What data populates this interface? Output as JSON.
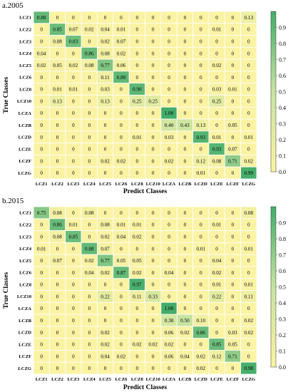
{
  "chart_data": [
    {
      "type": "heatmap",
      "title": "a.2005",
      "xlabel": "Predict Classes",
      "ylabel": "True Classes",
      "x_categories": [
        "LCZ1",
        "LCZ2",
        "LCZ3",
        "LCZ4",
        "LCZ5",
        "LCZ6",
        "LCZ8",
        "LCZ10",
        "LCZA",
        "LCZB",
        "LCZD",
        "LCZE",
        "LCZF",
        "LCZG"
      ],
      "y_categories": [
        "LCZ1",
        "LCZ2",
        "LCZ3",
        "LCZ4",
        "LCZ5",
        "LCZ6",
        "LCZ8",
        "LCZ10",
        "LCZA",
        "LCZB",
        "LCZD",
        "LCZE",
        "LCZF",
        "LCZG"
      ],
      "values": [
        [
          "0.88",
          "0",
          "0",
          "0",
          "0",
          "0",
          "0",
          "0",
          "0",
          "0",
          "0",
          "0",
          "0",
          "0.13"
        ],
        [
          "0",
          "0.85",
          "0.07",
          "0.02",
          "0.04",
          "0.01",
          "0",
          "0",
          "0",
          "0",
          "0",
          "0.01",
          "0",
          "0"
        ],
        [
          "0",
          "0.08",
          "0.83",
          "0",
          "0.02",
          "0.07",
          "0",
          "0",
          "0",
          "0",
          "0",
          "0",
          "0",
          "0"
        ],
        [
          "0.04",
          "0",
          "0",
          "0.86",
          "0.08",
          "0.02",
          "0",
          "0",
          "0",
          "0",
          "0",
          "0",
          "0",
          "0"
        ],
        [
          "0.02",
          "0.05",
          "0.02",
          "0.08",
          "0.77",
          "0.06",
          "0",
          "0",
          "0",
          "0",
          "0",
          "0.02",
          "0",
          "0"
        ],
        [
          "0",
          "0",
          "0",
          "0",
          "0.11",
          "0.89",
          "0",
          "0",
          "0",
          "0",
          "0",
          "0",
          "0",
          "0"
        ],
        [
          "0",
          "0.01",
          "0.01",
          "0",
          "0.03",
          "0",
          "0.90",
          "0",
          "0",
          "0",
          "0",
          "0.03",
          "0.01",
          "0"
        ],
        [
          "0",
          "0.13",
          "0",
          "0",
          "0.13",
          "0",
          "0.25",
          "0.25",
          "0",
          "0",
          "0",
          "0.25",
          "0",
          "0"
        ],
        [
          "0",
          "0",
          "0",
          "0",
          "0",
          "0",
          "0",
          "0",
          "1.00",
          "0",
          "0",
          "0",
          "0",
          "0"
        ],
        [
          "0",
          "0",
          "0",
          "0",
          "0",
          "0",
          "0",
          "0",
          "0.40",
          "0.43",
          "0.13",
          "0",
          "0.05",
          "0"
        ],
        [
          "0",
          "0",
          "0",
          "0",
          "0",
          "0",
          "0.01",
          "0",
          "0.03",
          "0",
          "0.93",
          "0.01",
          "0",
          "0.01"
        ],
        [
          "0",
          "0",
          "0",
          "0",
          "0",
          "0",
          "0",
          "0",
          "0",
          "0",
          "0",
          "0.93",
          "0.07",
          "0"
        ],
        [
          "0",
          "0",
          "0",
          "0",
          "0.02",
          "0.02",
          "0",
          "0",
          "0.02",
          "0",
          "0.12",
          "0.08",
          "0.71",
          "0.02"
        ],
        [
          "0",
          "0",
          "0",
          "0",
          "0",
          "0",
          "0",
          "0",
          "0",
          "0",
          "0.01",
          "0",
          "0",
          "0.99"
        ]
      ],
      "colorbar": {
        "range": [
          0,
          1
        ],
        "ticks": [
          "0.0",
          "0.1",
          "0.2",
          "0.3",
          "0.4",
          "0.5",
          "0.6",
          "0.7",
          "0.8",
          "0.9"
        ]
      }
    },
    {
      "type": "heatmap",
      "title": "b.2015",
      "xlabel": "Predict Classes",
      "ylabel": "True Classes",
      "x_categories": [
        "LCZ1",
        "LCZ2",
        "LCZ3",
        "LCZ4",
        "LCZ5",
        "LCZ6",
        "LCZ8",
        "LCZ10",
        "LCZA",
        "LCZB",
        "LCZD",
        "LCZE",
        "LCZF",
        "LCZG"
      ],
      "y_categories": [
        "LCZ1",
        "LCZ2",
        "LCZ3",
        "LCZ4",
        "LCZ5",
        "LCZ6",
        "LCZ8",
        "LCZ10",
        "LCZA",
        "LCZB",
        "LCZD",
        "LCZE",
        "LCZF",
        "LCZG"
      ],
      "values": [
        [
          "0.75",
          "0.08",
          "0",
          "0.08",
          "0",
          "0",
          "0",
          "0",
          "0",
          "0",
          "0",
          "0",
          "0",
          "0.08"
        ],
        [
          "0",
          "0.86",
          "0.01",
          "0",
          "0.08",
          "0.01",
          "0.01",
          "0",
          "0",
          "0",
          "0",
          "0.01",
          "0",
          "0"
        ],
        [
          "0",
          "0.08",
          "0.85",
          "0",
          "0.02",
          "0.04",
          "0.02",
          "0",
          "0",
          "0",
          "0",
          "0",
          "0",
          "0"
        ],
        [
          "0.01",
          "0",
          "0",
          "0.88",
          "0.07",
          "0",
          "0",
          "0",
          "0",
          "0",
          "0.01",
          "0",
          "0",
          "0.01"
        ],
        [
          "0",
          "0.07",
          "0",
          "0.02",
          "0.77",
          "0.05",
          "0.05",
          "0",
          "0",
          "0",
          "0",
          "0.04",
          "0",
          "0"
        ],
        [
          "0",
          "0",
          "0",
          "0.04",
          "0.02",
          "0.87",
          "0.02",
          "0",
          "0.04",
          "0",
          "0",
          "0.02",
          "0",
          "0"
        ],
        [
          "0",
          "0",
          "0",
          "0",
          "0",
          "0",
          "0.97",
          "0",
          "0",
          "0",
          "0",
          "0.01",
          "0",
          "0.01"
        ],
        [
          "0",
          "0",
          "0",
          "0",
          "0.22",
          "0",
          "0.11",
          "0.33",
          "0",
          "0",
          "0",
          "0.22",
          "0",
          "0.11"
        ],
        [
          "0",
          "0",
          "0",
          "0",
          "0",
          "0",
          "0",
          "0",
          "1.00",
          "0",
          "0",
          "0",
          "0",
          "0"
        ],
        [
          "0",
          "0",
          "0",
          "0",
          "0",
          "0",
          "0",
          "0",
          "0.38",
          "0.50",
          "0.10",
          "0",
          "0",
          "0.02"
        ],
        [
          "0",
          "0",
          "0",
          "0",
          "0.02",
          "0",
          "0",
          "0",
          "0.06",
          "0.02",
          "0.86",
          "0",
          "0.03",
          "0.02"
        ],
        [
          "0",
          "0",
          "0",
          "0",
          "0.02",
          "0",
          "0.02",
          "0.02",
          "0.02",
          "0",
          "0",
          "0.85",
          "0.05",
          "0"
        ],
        [
          "0",
          "0",
          "0",
          "0",
          "0.04",
          "0.02",
          "0",
          "0",
          "0.06",
          "0.04",
          "0.02",
          "0.12",
          "0.71",
          "0"
        ],
        [
          "0",
          "0",
          "0",
          "0",
          "0",
          "0",
          "0",
          "0",
          "0",
          "0",
          "0.02",
          "0",
          "0",
          "0.98"
        ]
      ],
      "colorbar": {
        "range": [
          0,
          1
        ],
        "ticks": [
          "0.0",
          "0.1",
          "0.2",
          "0.3",
          "0.4",
          "0.5",
          "0.6",
          "0.7",
          "0.8",
          "0.9"
        ]
      }
    }
  ]
}
